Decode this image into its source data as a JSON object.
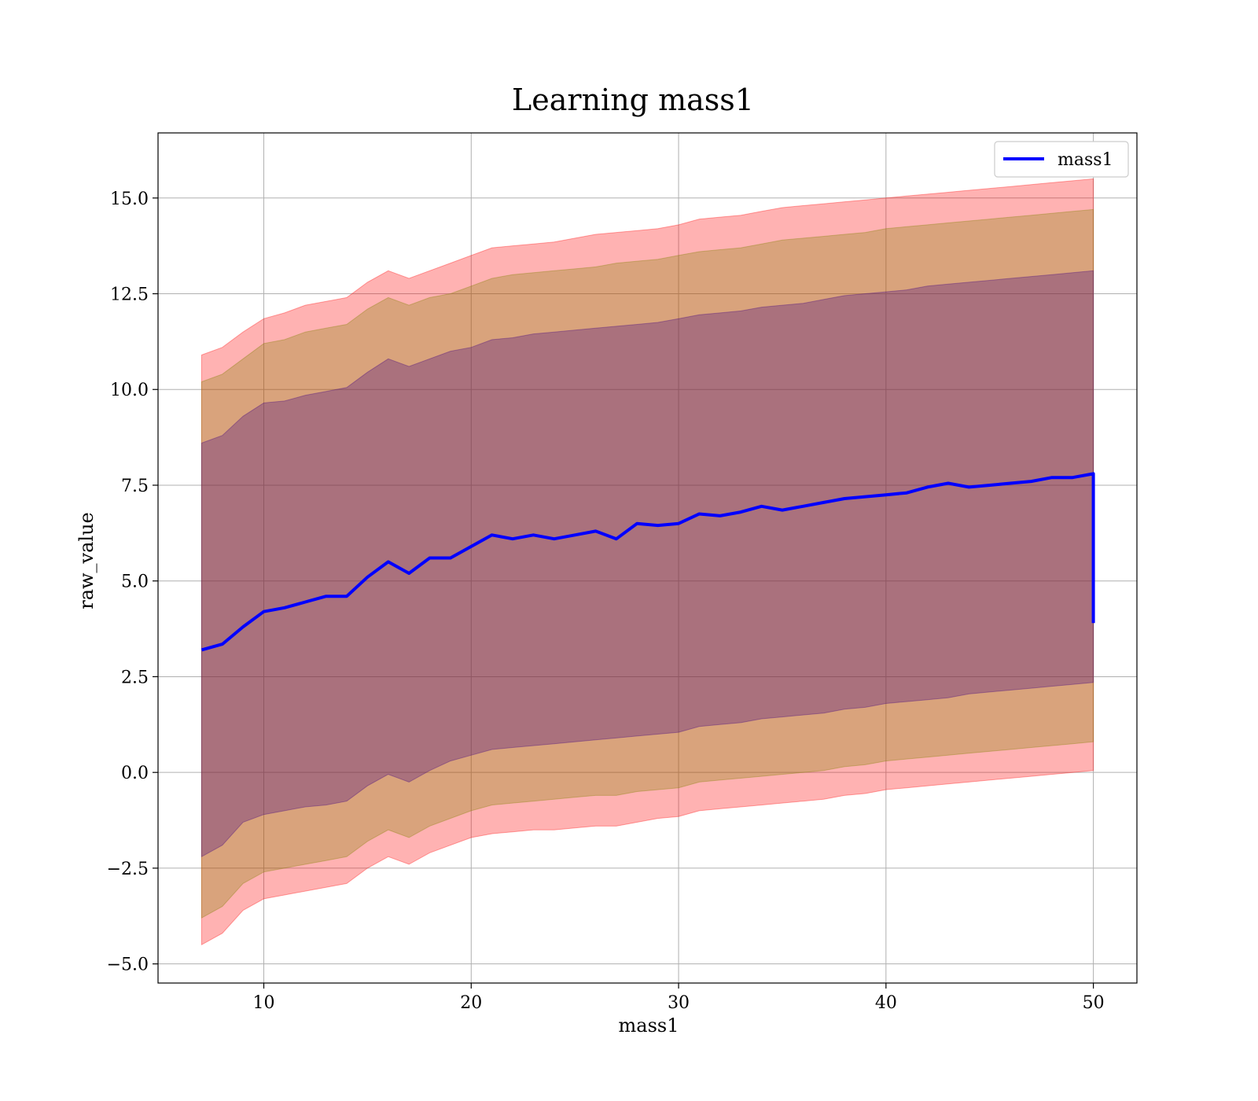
{
  "chart_data": {
    "type": "area",
    "title": "Learning mass1",
    "xlabel": "mass1",
    "ylabel": "raw_value",
    "xlim": [
      4.9,
      52.1
    ],
    "ylim": [
      -5.5,
      16.7
    ],
    "xticks": [
      10,
      20,
      30,
      40,
      50
    ],
    "xtick_labels": [
      "10",
      "20",
      "30",
      "40",
      "50"
    ],
    "yticks": [
      -5.0,
      -2.5,
      0.0,
      2.5,
      5.0,
      7.5,
      10.0,
      12.5,
      15.0
    ],
    "ytick_labels": [
      "−5.0",
      "−2.5",
      "0.0",
      "2.5",
      "5.0",
      "7.5",
      "10.0",
      "12.5",
      "15.0"
    ],
    "grid": true,
    "legend": {
      "placement": "upper right",
      "entries": [
        "mass1"
      ]
    },
    "x": [
      7,
      8,
      9,
      10,
      11,
      12,
      13,
      14,
      15,
      16,
      17,
      18,
      19,
      20,
      21,
      22,
      23,
      24,
      25,
      26,
      27,
      28,
      29,
      30,
      31,
      32,
      33,
      34,
      35,
      36,
      37,
      38,
      39,
      40,
      41,
      42,
      43,
      44,
      45,
      46,
      47,
      48,
      49,
      50
    ],
    "series": [
      {
        "name": "mass1",
        "color": "#0000ff",
        "values": [
          3.2,
          3.35,
          3.8,
          4.2,
          4.3,
          4.45,
          4.6,
          4.6,
          5.1,
          5.5,
          5.2,
          5.6,
          5.6,
          5.9,
          6.2,
          6.1,
          6.2,
          6.1,
          6.2,
          6.3,
          6.1,
          6.5,
          6.45,
          6.5,
          6.75,
          6.7,
          6.8,
          6.95,
          6.85,
          6.95,
          7.05,
          7.15,
          7.2,
          7.25,
          7.3,
          7.45,
          7.55,
          7.45,
          7.5,
          7.55,
          7.6,
          7.7,
          7.7,
          7.8
        ],
        "end_drop": 3.9
      }
    ],
    "bands": [
      {
        "level": "outer",
        "color": "#ff0000",
        "opacity": 0.3,
        "upper": [
          10.9,
          11.1,
          11.5,
          11.85,
          12.0,
          12.2,
          12.3,
          12.4,
          12.8,
          13.1,
          12.9,
          13.1,
          13.3,
          13.5,
          13.7,
          13.75,
          13.8,
          13.85,
          13.95,
          14.05,
          14.1,
          14.15,
          14.2,
          14.3,
          14.45,
          14.5,
          14.55,
          14.65,
          14.75,
          14.8,
          14.85,
          14.9,
          14.95,
          15.0,
          15.05,
          15.1,
          15.15,
          15.2,
          15.25,
          15.3,
          15.35,
          15.4,
          15.45,
          15.5
        ],
        "lower": [
          -4.5,
          -4.2,
          -3.6,
          -3.3,
          -3.2,
          -3.1,
          -3.0,
          -2.9,
          -2.5,
          -2.2,
          -2.4,
          -2.1,
          -1.9,
          -1.7,
          -1.6,
          -1.55,
          -1.5,
          -1.5,
          -1.45,
          -1.4,
          -1.4,
          -1.3,
          -1.2,
          -1.15,
          -1.0,
          -0.95,
          -0.9,
          -0.85,
          -0.8,
          -0.75,
          -0.7,
          -0.6,
          -0.55,
          -0.45,
          -0.4,
          -0.35,
          -0.3,
          -0.25,
          -0.2,
          -0.15,
          -0.1,
          -0.05,
          0.0,
          0.05
        ]
      },
      {
        "level": "middle",
        "color": "#808000",
        "opacity": 0.3,
        "upper": [
          10.2,
          10.4,
          10.8,
          11.2,
          11.3,
          11.5,
          11.6,
          11.7,
          12.1,
          12.4,
          12.2,
          12.4,
          12.5,
          12.7,
          12.9,
          13.0,
          13.05,
          13.1,
          13.15,
          13.2,
          13.3,
          13.35,
          13.4,
          13.5,
          13.6,
          13.65,
          13.7,
          13.8,
          13.9,
          13.95,
          14.0,
          14.05,
          14.1,
          14.2,
          14.25,
          14.3,
          14.35,
          14.4,
          14.45,
          14.5,
          14.55,
          14.6,
          14.65,
          14.7
        ],
        "lower": [
          -3.8,
          -3.5,
          -2.9,
          -2.6,
          -2.5,
          -2.4,
          -2.3,
          -2.2,
          -1.8,
          -1.5,
          -1.7,
          -1.4,
          -1.2,
          -1.0,
          -0.85,
          -0.8,
          -0.75,
          -0.7,
          -0.65,
          -0.6,
          -0.6,
          -0.5,
          -0.45,
          -0.4,
          -0.25,
          -0.2,
          -0.15,
          -0.1,
          -0.05,
          0.0,
          0.05,
          0.15,
          0.2,
          0.3,
          0.35,
          0.4,
          0.45,
          0.5,
          0.55,
          0.6,
          0.65,
          0.7,
          0.75,
          0.8
        ]
      },
      {
        "level": "inner",
        "color": "#400080",
        "opacity": 0.3,
        "upper": [
          8.6,
          8.8,
          9.3,
          9.65,
          9.7,
          9.85,
          9.95,
          10.05,
          10.45,
          10.8,
          10.6,
          10.8,
          11.0,
          11.1,
          11.3,
          11.35,
          11.45,
          11.5,
          11.55,
          11.6,
          11.65,
          11.7,
          11.75,
          11.85,
          11.95,
          12.0,
          12.05,
          12.15,
          12.2,
          12.25,
          12.35,
          12.45,
          12.5,
          12.55,
          12.6,
          12.7,
          12.75,
          12.8,
          12.85,
          12.9,
          12.95,
          13.0,
          13.05,
          13.1
        ],
        "lower": [
          -2.2,
          -1.9,
          -1.3,
          -1.1,
          -1.0,
          -0.9,
          -0.85,
          -0.75,
          -0.35,
          -0.05,
          -0.25,
          0.05,
          0.3,
          0.45,
          0.6,
          0.65,
          0.7,
          0.75,
          0.8,
          0.85,
          0.9,
          0.95,
          1.0,
          1.05,
          1.2,
          1.25,
          1.3,
          1.4,
          1.45,
          1.5,
          1.55,
          1.65,
          1.7,
          1.8,
          1.85,
          1.9,
          1.95,
          2.05,
          2.1,
          2.15,
          2.2,
          2.25,
          2.3,
          2.35
        ]
      }
    ]
  }
}
